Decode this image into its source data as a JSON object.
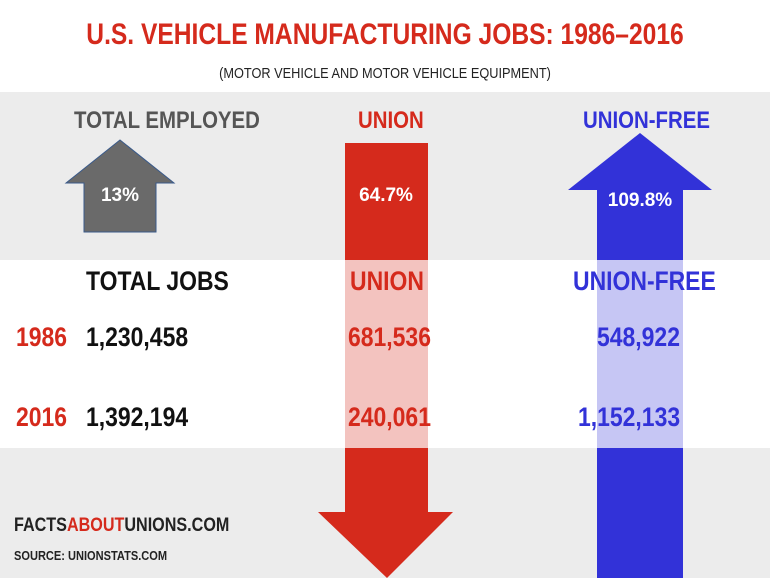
{
  "title": "U.S. VEHICLE MANUFACTURING JOBS: 1986–2016",
  "subtitle": "(MOTOR VEHICLE AND MOTOR VEHICLE EQUIPMENT)",
  "colors": {
    "red": "#d52a1c",
    "blue": "#3232d8",
    "grey": "#6a6a6a",
    "black": "#111111"
  },
  "columns": {
    "total": {
      "header": "TOTAL EMPLOYED",
      "change": "13%",
      "direction": "up",
      "table_header": "TOTAL JOBS"
    },
    "union": {
      "header": "UNION",
      "change": "64.7%",
      "direction": "down",
      "table_header": "UNION"
    },
    "nonunion": {
      "header": "UNION-FREE",
      "change": "109.8%",
      "direction": "up",
      "table_header": "UNION-FREE"
    }
  },
  "rows": [
    {
      "year": "1986",
      "total": "1,230,458",
      "union": "681,536",
      "nonunion": "548,922"
    },
    {
      "year": "2016",
      "total": "1,392,194",
      "union": "240,061",
      "nonunion": "1,152,133"
    }
  ],
  "footer": {
    "site_prefix": "FACTS",
    "site_highlight": "ABOUT",
    "site_suffix": "UNIONS.COM",
    "source": "SOURCE: UNIONSTATS.COM"
  }
}
